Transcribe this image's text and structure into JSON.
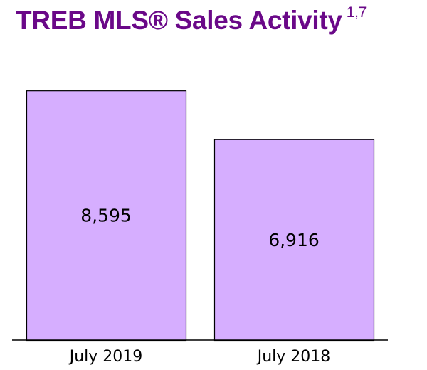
{
  "chart_data": {
    "type": "bar",
    "title": "TREB MLS® Sales Activity",
    "title_superscript": "1,7",
    "categories": [
      "July 2019",
      "July 2018"
    ],
    "values": [
      8595,
      6916
    ],
    "value_labels": [
      "8,595",
      "6,916"
    ],
    "xlabel": "",
    "ylabel": "",
    "ylim": [
      0,
      11000
    ],
    "grid": false,
    "legend": "none",
    "colors": {
      "bar_fill": "#d6aeff",
      "bar_stroke": "#000000",
      "title": "#6a0888"
    }
  }
}
